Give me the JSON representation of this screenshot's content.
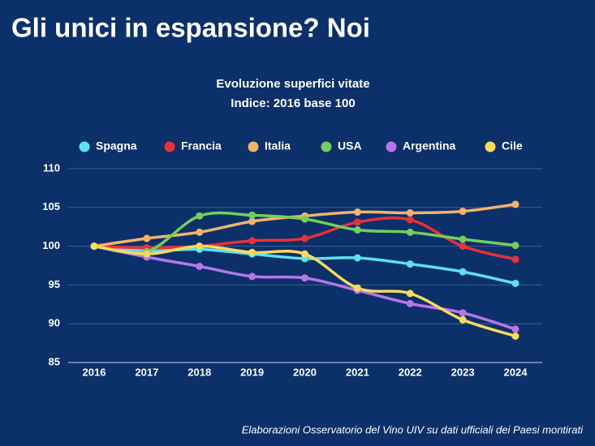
{
  "header": {
    "title": "Gli unici in espansione? Noi"
  },
  "chart_data": {
    "type": "line",
    "title": "Evoluzione superfici vitate",
    "subtitle": "Indice: 2016 base 100",
    "categories": [
      "2016",
      "2017",
      "2018",
      "2019",
      "2020",
      "2021",
      "2022",
      "2023",
      "2024"
    ],
    "series": [
      {
        "name": "Spagna",
        "color": "#5fe0ef",
        "values": [
          100,
          99.4,
          99.6,
          99.0,
          98.4,
          98.5,
          97.7,
          96.7,
          95.2
        ]
      },
      {
        "name": "Francia",
        "color": "#e8313b",
        "values": [
          100,
          99.8,
          100.0,
          100.7,
          101.0,
          103.1,
          103.4,
          100.0,
          98.3
        ]
      },
      {
        "name": "Italia",
        "color": "#f2b46c",
        "values": [
          100,
          101.0,
          101.8,
          103.2,
          103.9,
          104.4,
          104.3,
          104.5,
          105.4
        ]
      },
      {
        "name": "USA",
        "color": "#70d05b",
        "values": [
          100,
          99.3,
          103.9,
          104.0,
          103.5,
          102.1,
          101.8,
          100.9,
          100.1
        ]
      },
      {
        "name": "Argentina",
        "color": "#b875ea",
        "values": [
          100,
          98.6,
          97.4,
          96.1,
          95.9,
          94.3,
          92.6,
          91.4,
          89.3
        ]
      },
      {
        "name": "Cile",
        "color": "#f7db5c",
        "values": [
          100,
          99.0,
          100.0,
          99.2,
          99.0,
          94.6,
          93.9,
          90.5,
          88.4
        ]
      }
    ],
    "ylim": [
      85,
      110
    ],
    "yticks": [
      85,
      90,
      95,
      100,
      105,
      110
    ],
    "grid": true,
    "source": "Elaborazioni Osservatorio del Vino UIV su dati ufficiali dei Paesi montirati"
  }
}
